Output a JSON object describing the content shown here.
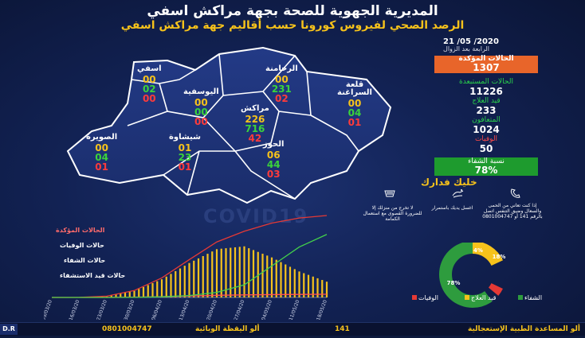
{
  "header": {
    "title": "المديرية الجهوية للصحة بجهة مراكش اسفي",
    "subtitle": "الرصد الصحي لفيروس كورونا حسب أقاليم جهة مراكش اسفي",
    "date": "21 /05 /2020",
    "time": "الرابعة بعد الزوال"
  },
  "regions": [
    {
      "name": "اسفي",
      "v": [
        "00",
        "02",
        "00"
      ]
    },
    {
      "name": "اليوسفية",
      "v": [
        "00",
        "00",
        "00"
      ]
    },
    {
      "name": "الرحامنة",
      "v": [
        "00",
        "231",
        "02"
      ]
    },
    {
      "name": "قلعة السراغنة",
      "v": [
        "00",
        "04",
        "01"
      ]
    },
    {
      "name": "مراكش",
      "v": [
        "226",
        "716",
        "42"
      ]
    },
    {
      "name": "الصويرة",
      "v": [
        "00",
        "04",
        "01"
      ]
    },
    {
      "name": "شيشاوة",
      "v": [
        "01",
        "23",
        "01"
      ]
    },
    {
      "name": "الحوز",
      "v": [
        "06",
        "44",
        "03"
      ]
    }
  ],
  "stats": {
    "confirmed_label": "الحالات المؤكدة",
    "confirmed": "1307",
    "recovered_label": "الحالات المستبعدة",
    "recovered": "11226",
    "treatment_label": "قيد العلاج",
    "treatment": "233",
    "cured_label": "المتعافون",
    "cured": "1024",
    "deaths_label": "الوفيات",
    "deaths": "50",
    "cure_rate_label": "نسبة الشفاء",
    "cure_rate": "78%"
  },
  "advice": {
    "title": "خليك فدارك",
    "items": [
      "إذا كنت تعاني من الحمى والسعال وضيق التنفس اتصل بالرقم 141 أو 0801004747",
      "اغسل يديك باستمرار",
      "لا تخرج من منزلك إلا للضرورة القصوى مع استعمال الكمامة"
    ]
  },
  "watermark": "COVID19",
  "chart_legend": {
    "confirmed": "الحالات المؤكدة",
    "deaths": "حالات الوفيات",
    "cured": "حالات الشفاء",
    "active": "حالات قيد الاستشفاء"
  },
  "chart_data": {
    "type": "line",
    "x": [
      "09/03/20",
      "16/03/20",
      "23/03/20",
      "30/03/20",
      "06/04/20",
      "13/04/20",
      "20/04/20",
      "27/04/20",
      "04/05/20",
      "11/05/20",
      "18/05/20"
    ],
    "series": [
      {
        "name": "الحالات المؤكدة",
        "color": "#e53935",
        "values": [
          0,
          2,
          20,
          110,
          310,
          600,
          880,
          1050,
          1180,
          1260,
          1300
        ]
      },
      {
        "name": "حالات الوفيات",
        "color": "#ff5252",
        "values": [
          0,
          0,
          1,
          4,
          12,
          24,
          34,
          40,
          45,
          48,
          50
        ]
      },
      {
        "name": "حالات الشفاء",
        "color": "#43d14b",
        "values": [
          0,
          0,
          0,
          2,
          10,
          30,
          80,
          200,
          500,
          800,
          1000
        ]
      },
      {
        "name": "حالات قيد الاستشفاء",
        "color": "#f6c21b",
        "values": [
          0,
          2,
          19,
          104,
          288,
          546,
          766,
          810,
          635,
          412,
          250
        ]
      }
    ],
    "ylim": [
      0,
      1350
    ]
  },
  "donut": {
    "segments": [
      {
        "label": "الشفاء",
        "value": 78,
        "color": "#2e9c3e"
      },
      {
        "label": "قيد العلاج",
        "value": 18,
        "color": "#f6c21b"
      },
      {
        "label": "الوفيات",
        "value": 4,
        "color": "#e53935"
      }
    ],
    "labels": {
      "cured": "78%",
      "treatment": "18%",
      "deaths": "4%"
    }
  },
  "footer": {
    "emergency_label": "ألو المساعدة الطبية الإستعجالية",
    "emergency": "141",
    "epidemic_label": "ألو اليقظة الوبائية",
    "epidemic": "0801004747",
    "credit": "D.R"
  }
}
